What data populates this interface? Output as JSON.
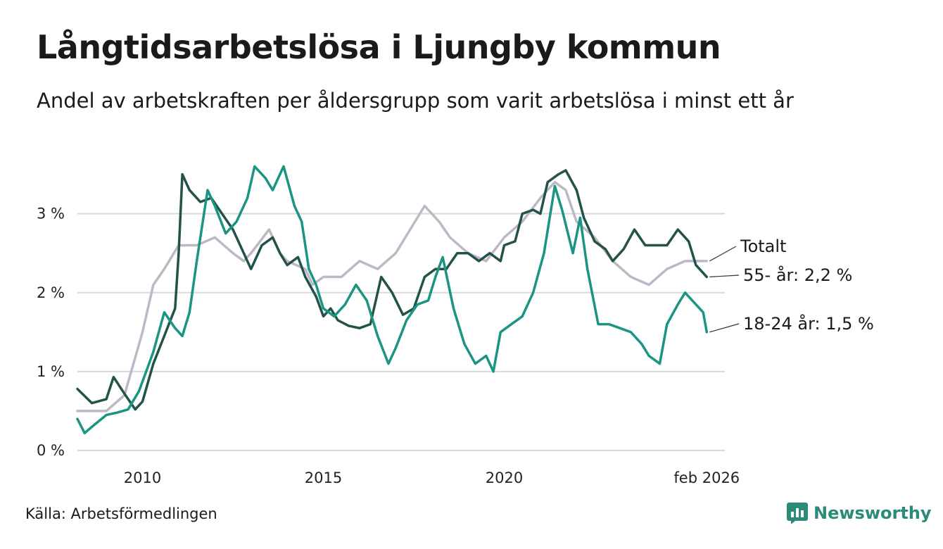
{
  "title": "Långtidsarbetslösa i Ljungby kommun",
  "subtitle": "Andel av arbetskraften per åldersgrupp som varit arbetslösa i minst ett år",
  "source": "Källa: Arbetsförmedlingen",
  "brand": {
    "name": "Newsworthy",
    "icon": "newsworthy-logo-icon"
  },
  "colors": {
    "totalt": "#bdb8c6",
    "age55": "#23524a",
    "age18": "#1a9483",
    "grid": "#d9d9d9",
    "brand": "#2b8a78"
  },
  "chart_data": {
    "type": "line",
    "title": "Långtidsarbetslösa i Ljungby kommun",
    "xlabel": "",
    "ylabel": "",
    "xlim": [
      2008.2,
      2026.1
    ],
    "ylim": [
      0,
      3.8
    ],
    "y_ticks": [
      {
        "value": 0,
        "label": "0 %"
      },
      {
        "value": 1,
        "label": "1 %"
      },
      {
        "value": 2,
        "label": "2 %"
      },
      {
        "value": 3,
        "label": "3 %"
      }
    ],
    "x_ticks": [
      {
        "value": 2010,
        "label": "2010"
      },
      {
        "value": 2015,
        "label": "2015"
      },
      {
        "value": 2020,
        "label": "2020"
      },
      {
        "value": 2025.6,
        "label": "feb 2026"
      }
    ],
    "series": [
      {
        "name": "Totalt",
        "end_label": "Totalt",
        "color_key": "totalt",
        "points": [
          [
            2008.2,
            0.5
          ],
          [
            2009.0,
            0.5
          ],
          [
            2009.5,
            0.7
          ],
          [
            2010.0,
            1.5
          ],
          [
            2010.3,
            2.1
          ],
          [
            2010.6,
            2.3
          ],
          [
            2011.0,
            2.6
          ],
          [
            2011.5,
            2.6
          ],
          [
            2012.0,
            2.7
          ],
          [
            2012.5,
            2.5
          ],
          [
            2012.8,
            2.4
          ],
          [
            2013.0,
            2.5
          ],
          [
            2013.5,
            2.8
          ],
          [
            2013.8,
            2.5
          ],
          [
            2014.0,
            2.4
          ],
          [
            2014.5,
            2.3
          ],
          [
            2014.7,
            2.1
          ],
          [
            2015.0,
            2.2
          ],
          [
            2015.5,
            2.2
          ],
          [
            2016.0,
            2.4
          ],
          [
            2016.5,
            2.3
          ],
          [
            2017.0,
            2.5
          ],
          [
            2017.4,
            2.8
          ],
          [
            2017.8,
            3.1
          ],
          [
            2018.2,
            2.9
          ],
          [
            2018.5,
            2.7
          ],
          [
            2019.0,
            2.5
          ],
          [
            2019.5,
            2.4
          ],
          [
            2020.0,
            2.7
          ],
          [
            2020.5,
            2.9
          ],
          [
            2021.0,
            3.2
          ],
          [
            2021.4,
            3.4
          ],
          [
            2021.7,
            3.3
          ],
          [
            2022.0,
            2.9
          ],
          [
            2022.5,
            2.7
          ],
          [
            2023.0,
            2.4
          ],
          [
            2023.5,
            2.2
          ],
          [
            2024.0,
            2.1
          ],
          [
            2024.5,
            2.3
          ],
          [
            2025.0,
            2.4
          ],
          [
            2025.6,
            2.4
          ]
        ]
      },
      {
        "name": "55- år",
        "end_label": "55- år: 2,2 %",
        "color_key": "age55",
        "points": [
          [
            2008.2,
            0.78
          ],
          [
            2008.6,
            0.6
          ],
          [
            2009.0,
            0.65
          ],
          [
            2009.2,
            0.93
          ],
          [
            2009.5,
            0.72
          ],
          [
            2009.8,
            0.52
          ],
          [
            2010.0,
            0.62
          ],
          [
            2010.3,
            1.1
          ],
          [
            2010.6,
            1.45
          ],
          [
            2010.9,
            1.8
          ],
          [
            2011.0,
            2.5
          ],
          [
            2011.1,
            3.5
          ],
          [
            2011.3,
            3.3
          ],
          [
            2011.6,
            3.15
          ],
          [
            2011.9,
            3.2
          ],
          [
            2012.2,
            3.0
          ],
          [
            2012.5,
            2.8
          ],
          [
            2012.8,
            2.5
          ],
          [
            2013.0,
            2.3
          ],
          [
            2013.3,
            2.6
          ],
          [
            2013.6,
            2.7
          ],
          [
            2013.8,
            2.5
          ],
          [
            2014.0,
            2.35
          ],
          [
            2014.3,
            2.45
          ],
          [
            2014.5,
            2.2
          ],
          [
            2014.8,
            1.95
          ],
          [
            2015.0,
            1.7
          ],
          [
            2015.2,
            1.8
          ],
          [
            2015.4,
            1.65
          ],
          [
            2015.7,
            1.58
          ],
          [
            2016.0,
            1.55
          ],
          [
            2016.3,
            1.6
          ],
          [
            2016.6,
            2.2
          ],
          [
            2016.9,
            2.0
          ],
          [
            2017.2,
            1.72
          ],
          [
            2017.5,
            1.8
          ],
          [
            2017.8,
            2.2
          ],
          [
            2018.1,
            2.3
          ],
          [
            2018.4,
            2.3
          ],
          [
            2018.7,
            2.5
          ],
          [
            2019.0,
            2.5
          ],
          [
            2019.3,
            2.4
          ],
          [
            2019.6,
            2.5
          ],
          [
            2019.9,
            2.4
          ],
          [
            2020.0,
            2.6
          ],
          [
            2020.3,
            2.65
          ],
          [
            2020.5,
            3.0
          ],
          [
            2020.8,
            3.05
          ],
          [
            2021.0,
            3.0
          ],
          [
            2021.2,
            3.4
          ],
          [
            2021.5,
            3.5
          ],
          [
            2021.7,
            3.55
          ],
          [
            2022.0,
            3.3
          ],
          [
            2022.2,
            2.95
          ],
          [
            2022.5,
            2.65
          ],
          [
            2022.8,
            2.55
          ],
          [
            2023.0,
            2.4
          ],
          [
            2023.3,
            2.55
          ],
          [
            2023.6,
            2.8
          ],
          [
            2023.9,
            2.6
          ],
          [
            2024.2,
            2.6
          ],
          [
            2024.5,
            2.6
          ],
          [
            2024.8,
            2.8
          ],
          [
            2025.1,
            2.65
          ],
          [
            2025.3,
            2.35
          ],
          [
            2025.6,
            2.2
          ]
        ]
      },
      {
        "name": "18-24 år",
        "end_label": "18-24 år: 1,5 %",
        "color_key": "age18",
        "points": [
          [
            2008.2,
            0.4
          ],
          [
            2008.4,
            0.22
          ],
          [
            2008.6,
            0.3
          ],
          [
            2009.0,
            0.45
          ],
          [
            2009.3,
            0.48
          ],
          [
            2009.6,
            0.52
          ],
          [
            2009.9,
            0.75
          ],
          [
            2010.1,
            1.0
          ],
          [
            2010.3,
            1.25
          ],
          [
            2010.6,
            1.75
          ],
          [
            2010.9,
            1.55
          ],
          [
            2011.1,
            1.45
          ],
          [
            2011.3,
            1.75
          ],
          [
            2011.5,
            2.4
          ],
          [
            2011.8,
            3.3
          ],
          [
            2012.0,
            3.1
          ],
          [
            2012.3,
            2.75
          ],
          [
            2012.6,
            2.9
          ],
          [
            2012.9,
            3.2
          ],
          [
            2013.1,
            3.6
          ],
          [
            2013.4,
            3.45
          ],
          [
            2013.6,
            3.3
          ],
          [
            2013.9,
            3.6
          ],
          [
            2014.2,
            3.1
          ],
          [
            2014.4,
            2.9
          ],
          [
            2014.6,
            2.3
          ],
          [
            2014.8,
            2.1
          ],
          [
            2015.0,
            1.8
          ],
          [
            2015.3,
            1.7
          ],
          [
            2015.6,
            1.85
          ],
          [
            2015.9,
            2.1
          ],
          [
            2016.2,
            1.9
          ],
          [
            2016.5,
            1.45
          ],
          [
            2016.8,
            1.1
          ],
          [
            2017.0,
            1.3
          ],
          [
            2017.3,
            1.65
          ],
          [
            2017.6,
            1.85
          ],
          [
            2017.9,
            1.9
          ],
          [
            2018.1,
            2.2
          ],
          [
            2018.3,
            2.45
          ],
          [
            2018.6,
            1.8
          ],
          [
            2018.9,
            1.35
          ],
          [
            2019.2,
            1.1
          ],
          [
            2019.5,
            1.2
          ],
          [
            2019.7,
            1.0
          ],
          [
            2019.9,
            1.5
          ],
          [
            2020.2,
            1.6
          ],
          [
            2020.5,
            1.7
          ],
          [
            2020.8,
            2.0
          ],
          [
            2021.1,
            2.5
          ],
          [
            2021.4,
            3.35
          ],
          [
            2021.6,
            3.05
          ],
          [
            2021.9,
            2.5
          ],
          [
            2022.1,
            2.95
          ],
          [
            2022.3,
            2.3
          ],
          [
            2022.6,
            1.6
          ],
          [
            2022.9,
            1.6
          ],
          [
            2023.2,
            1.55
          ],
          [
            2023.5,
            1.5
          ],
          [
            2023.8,
            1.35
          ],
          [
            2024.0,
            1.2
          ],
          [
            2024.3,
            1.1
          ],
          [
            2024.5,
            1.6
          ],
          [
            2024.8,
            1.85
          ],
          [
            2025.0,
            2.0
          ],
          [
            2025.3,
            1.85
          ],
          [
            2025.5,
            1.75
          ],
          [
            2025.6,
            1.5
          ]
        ]
      }
    ]
  }
}
